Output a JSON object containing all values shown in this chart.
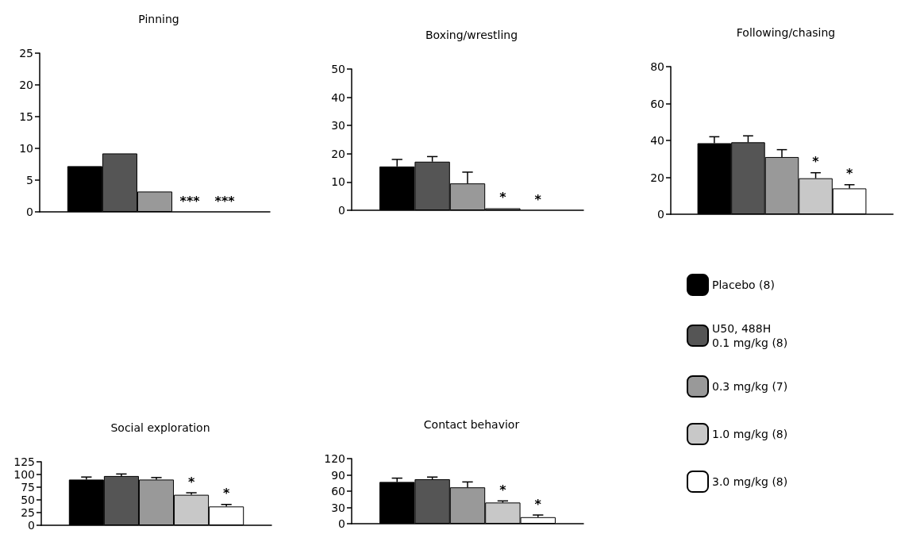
{
  "chart_data": [
    {
      "type": "bar",
      "title": "Pinning",
      "categories": [
        null
      ],
      "ylim": [
        0,
        25
      ],
      "yticks": [
        0,
        5,
        10,
        15,
        20,
        25
      ],
      "grid": false,
      "legend": false,
      "series": [
        {
          "color": "#000000",
          "values": [
            7.2
          ]
        },
        {
          "color": "#555555",
          "values": [
            9.2
          ]
        },
        {
          "color": "#999999",
          "values": [
            3.2
          ]
        },
        {
          "color": "#c8c8c8",
          "values": [
            0
          ]
        },
        {
          "color": "#ffffff",
          "values": [
            0
          ]
        }
      ],
      "annotations": [
        "***",
        "***"
      ]
    },
    {
      "type": "bar",
      "title": "Boxing/wrestling",
      "categories": [
        null
      ],
      "ylim": [
        0,
        50
      ],
      "yticks": [
        0,
        10,
        20,
        30,
        40,
        50
      ],
      "grid": false,
      "legend": false,
      "series": [
        {
          "color": "#000000",
          "values": [
            15.5
          ],
          "errors": [
            [
              15.5,
              18
            ]
          ]
        },
        {
          "color": "#555555",
          "values": [
            17.2
          ],
          "errors": [
            [
              17.2,
              19
            ]
          ]
        },
        {
          "color": "#999999",
          "values": [
            9.5
          ],
          "errors": [
            [
              9.5,
              13.5
            ]
          ]
        },
        {
          "color": "#c8c8c8",
          "values": [
            0.7
          ]
        },
        {
          "color": "#ffffff",
          "values": [
            0
          ]
        }
      ],
      "annotations": [
        "*",
        "*"
      ]
    },
    {
      "type": "bar",
      "title": "Following/chasing",
      "categories": [
        null
      ],
      "ylim": [
        0,
        80
      ],
      "yticks": [
        0,
        20,
        40,
        60,
        80
      ],
      "grid": false,
      "legend": "bottom",
      "series": [
        {
          "name": "Placebo (8)",
          "color": "#000000",
          "values": [
            38.5
          ],
          "errors": [
            [
              38.5,
              42
            ]
          ]
        },
        {
          "name": "U50, 488H\n0.1 mg/kg (8)",
          "color": "#555555",
          "values": [
            39
          ],
          "errors": [
            [
              39,
              42.5
            ]
          ]
        },
        {
          "name": "0.3 mg/kg (7)",
          "color": "#999999",
          "values": [
            31
          ],
          "errors": [
            [
              31,
              35
            ]
          ]
        },
        {
          "name": "1.0 mg/kg (8)",
          "color": "#c8c8c8",
          "values": [
            19.5
          ],
          "errors": [
            [
              19.5,
              22.5
            ]
          ]
        },
        {
          "name": "3.0 mg/kg (8)",
          "color": "#ffffff",
          "values": [
            14
          ],
          "errors": [
            [
              14,
              16
            ]
          ]
        }
      ],
      "annotations": [
        "*",
        "*"
      ]
    },
    {
      "type": "bar",
      "title": "Social exploration",
      "categories": [
        null
      ],
      "ylim": [
        0,
        125
      ],
      "yticks": [
        0,
        25,
        50,
        75,
        100,
        125
      ],
      "grid": false,
      "legend": false,
      "series": [
        {
          "color": "#000000",
          "values": [
            90
          ],
          "errors": [
            [
              90,
              95
            ]
          ]
        },
        {
          "color": "#555555",
          "values": [
            97
          ],
          "errors": [
            [
              97,
              101
            ]
          ]
        },
        {
          "color": "#999999",
          "values": [
            90
          ],
          "errors": [
            [
              90,
              94
            ]
          ]
        },
        {
          "color": "#c8c8c8",
          "values": [
            60
          ],
          "errors": [
            [
              60,
              64
            ]
          ]
        },
        {
          "color": "#ffffff",
          "values": [
            37
          ],
          "errors": [
            [
              37,
              41
            ]
          ]
        }
      ],
      "annotations": [
        "*",
        "*"
      ]
    },
    {
      "type": "bar",
      "title": "Contact behavior",
      "categories": [
        null
      ],
      "ylim": [
        0,
        120
      ],
      "yticks": [
        0,
        30,
        60,
        90,
        120
      ],
      "grid": false,
      "legend": false,
      "series": [
        {
          "color": "#000000",
          "values": [
            77
          ],
          "errors": [
            [
              77,
              84
            ]
          ]
        },
        {
          "color": "#555555",
          "values": [
            82
          ],
          "errors": [
            [
              82,
              86
            ]
          ]
        },
        {
          "color": "#999999",
          "values": [
            67
          ],
          "errors": [
            [
              67,
              77
            ]
          ]
        },
        {
          "color": "#c8c8c8",
          "values": [
            39
          ],
          "errors": [
            [
              39,
              42
            ]
          ]
        },
        {
          "color": "#ffffff",
          "values": [
            12
          ],
          "errors": [
            [
              12,
              16
            ]
          ]
        }
      ],
      "annotations": [
        "*",
        "*"
      ]
    }
  ]
}
